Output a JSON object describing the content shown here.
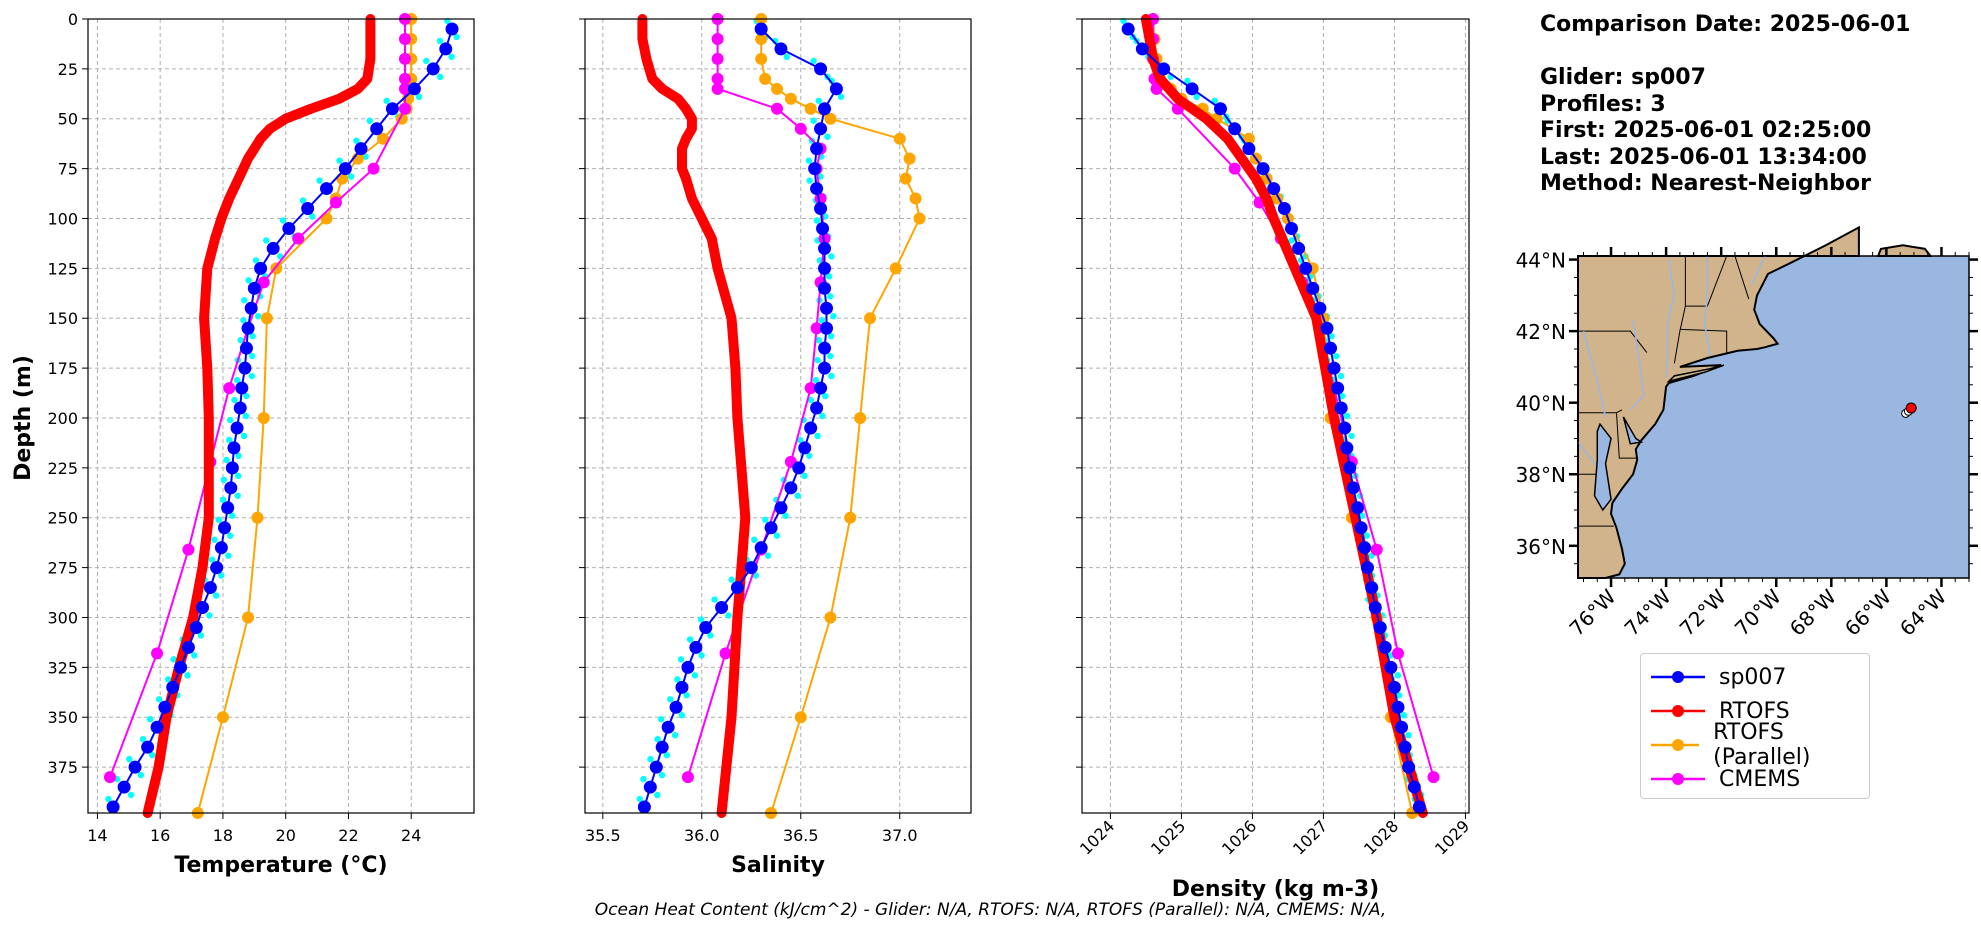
{
  "info": {
    "comparison_date": "Comparison Date: 2025-06-01",
    "glider": "Glider: sp007",
    "profiles": "Profiles: 3",
    "first": "First: 2025-06-01 02:25:00",
    "last": "Last: 2025-06-01 13:34:00",
    "method": "Method: Nearest-Neighbor"
  },
  "footer": "Ocean Heat Content (kJ/cm^2) - Glider: N/A,  RTOFS: N/A,  RTOFS (Parallel): N/A,  CMEMS: N/A,",
  "colors": {
    "sp007": "#0000ff",
    "rtofs": "#ff0000",
    "parallel": "#ffa500",
    "cmems": "#ff00ff",
    "raw": "#00ffff",
    "land": "#d2b48c",
    "ocean": "#9ab7e2",
    "grid": "#b0b0b0"
  },
  "legend": [
    {
      "key": "sp007",
      "label": "sp007",
      "color": "#0000ff"
    },
    {
      "key": "rtofs",
      "label": "RTOFS",
      "color": "#ff0000"
    },
    {
      "key": "parallel",
      "label": "RTOFS (Parallel)",
      "color": "#ffa500"
    },
    {
      "key": "cmems",
      "label": "CMEMS",
      "color": "#ff00ff"
    }
  ],
  "chart_data": [
    {
      "type": "line",
      "xlabel": "Temperature (°C)",
      "ylabel": "Depth (m)",
      "xlim": [
        13.7,
        26.0
      ],
      "ylim": [
        398,
        0
      ],
      "xticks": [
        14,
        16,
        18,
        20,
        22,
        24
      ],
      "yticks": [
        0,
        25,
        50,
        75,
        100,
        125,
        150,
        175,
        200,
        225,
        250,
        275,
        300,
        325,
        350,
        375
      ],
      "grid": true,
      "series": [
        {
          "name": "sp007",
          "depth": [
            5,
            15,
            25,
            35,
            45,
            55,
            65,
            75,
            85,
            95,
            105,
            115,
            125,
            135,
            145,
            155,
            165,
            175,
            185,
            195,
            205,
            215,
            225,
            235,
            245,
            255,
            265,
            275,
            285,
            295,
            305,
            315,
            325,
            335,
            345,
            355,
            365,
            375,
            385,
            395
          ],
          "values": [
            25.3,
            25.1,
            24.7,
            24.1,
            23.4,
            22.9,
            22.4,
            21.9,
            21.3,
            20.7,
            20.1,
            19.6,
            19.2,
            19.0,
            18.9,
            18.8,
            18.75,
            18.7,
            18.6,
            18.55,
            18.45,
            18.35,
            18.3,
            18.25,
            18.15,
            18.05,
            17.95,
            17.8,
            17.6,
            17.35,
            17.15,
            16.9,
            16.65,
            16.4,
            16.15,
            15.9,
            15.6,
            15.2,
            14.85,
            14.5
          ]
        },
        {
          "name": "RTOFS",
          "depth": [
            0,
            10,
            20,
            30,
            35,
            40,
            45,
            50,
            55,
            60,
            65,
            70,
            80,
            90,
            100,
            110,
            125,
            150,
            175,
            200,
            225,
            250,
            275,
            300,
            325,
            350,
            375,
            398
          ],
          "values": [
            22.7,
            22.7,
            22.7,
            22.6,
            22.3,
            21.7,
            20.8,
            20.0,
            19.5,
            19.2,
            19.0,
            18.8,
            18.5,
            18.2,
            17.95,
            17.75,
            17.5,
            17.4,
            17.5,
            17.55,
            17.55,
            17.55,
            17.35,
            17.05,
            16.6,
            16.2,
            15.95,
            15.6
          ]
        },
        {
          "name": "RTOFS (Parallel)",
          "depth": [
            0,
            10,
            20,
            30,
            35,
            40,
            45,
            50,
            60,
            70,
            80,
            90,
            100,
            125,
            150,
            200,
            250,
            300,
            350,
            398
          ],
          "values": [
            24.0,
            24.0,
            24.0,
            24.0,
            23.9,
            23.9,
            23.85,
            23.7,
            23.1,
            22.3,
            21.8,
            21.6,
            21.3,
            19.7,
            19.4,
            19.3,
            19.1,
            18.8,
            18.0,
            17.2
          ]
        },
        {
          "name": "CMEMS",
          "depth": [
            0,
            10,
            20,
            30,
            35,
            45,
            75,
            92,
            110,
            132,
            155,
            185,
            222,
            266,
            318,
            380
          ],
          "values": [
            23.8,
            23.8,
            23.8,
            23.8,
            23.8,
            23.8,
            22.8,
            21.6,
            20.4,
            19.3,
            18.8,
            18.2,
            17.6,
            16.9,
            15.9,
            14.4
          ]
        }
      ]
    },
    {
      "type": "line",
      "xlabel": "Salinity",
      "xlim": [
        35.41,
        37.36
      ],
      "ylim": [
        398,
        0
      ],
      "xticks": [
        35.5,
        36.0,
        36.5,
        37.0
      ],
      "xticklabels": [
        "35.5",
        "36.0",
        "36.5",
        "37.0"
      ],
      "grid": true,
      "series": [
        {
          "name": "sp007",
          "depth": [
            5,
            15,
            25,
            35,
            45,
            55,
            65,
            75,
            85,
            95,
            105,
            115,
            125,
            135,
            145,
            155,
            165,
            175,
            185,
            195,
            205,
            215,
            225,
            235,
            245,
            255,
            265,
            275,
            285,
            295,
            305,
            315,
            325,
            335,
            345,
            355,
            365,
            375,
            385,
            395
          ],
          "values": [
            36.3,
            36.4,
            36.6,
            36.68,
            36.62,
            36.6,
            36.58,
            36.57,
            36.58,
            36.6,
            36.61,
            36.62,
            36.62,
            36.62,
            36.63,
            36.63,
            36.62,
            36.62,
            36.6,
            36.58,
            36.55,
            36.52,
            36.49,
            36.45,
            36.4,
            36.35,
            36.3,
            36.25,
            36.18,
            36.1,
            36.02,
            35.97,
            35.93,
            35.9,
            35.87,
            35.83,
            35.8,
            35.77,
            35.74,
            35.71
          ]
        },
        {
          "name": "RTOFS",
          "depth": [
            0,
            10,
            20,
            30,
            35,
            40,
            45,
            50,
            55,
            60,
            65,
            70,
            75,
            80,
            90,
            100,
            110,
            125,
            150,
            175,
            200,
            225,
            250,
            275,
            300,
            350,
            398
          ],
          "values": [
            35.7,
            35.7,
            35.72,
            35.75,
            35.8,
            35.88,
            35.92,
            35.95,
            35.95,
            35.92,
            35.9,
            35.9,
            35.9,
            35.92,
            35.95,
            36.0,
            36.05,
            36.08,
            36.15,
            36.17,
            36.18,
            36.2,
            36.22,
            36.2,
            36.18,
            36.15,
            36.1
          ]
        },
        {
          "name": "RTOFS (Parallel)",
          "depth": [
            0,
            10,
            20,
            30,
            35,
            40,
            45,
            50,
            60,
            70,
            80,
            90,
            100,
            125,
            150,
            200,
            250,
            300,
            350,
            398
          ],
          "values": [
            36.3,
            36.3,
            36.3,
            36.32,
            36.38,
            36.45,
            36.55,
            36.65,
            37.0,
            37.05,
            37.03,
            37.08,
            37.1,
            36.98,
            36.85,
            36.8,
            36.75,
            36.65,
            36.5,
            36.35
          ]
        },
        {
          "name": "CMEMS",
          "depth": [
            0,
            10,
            20,
            30,
            35,
            45,
            55,
            65,
            75,
            90,
            110,
            132,
            155,
            185,
            222,
            266,
            318,
            380
          ],
          "values": [
            36.08,
            36.08,
            36.08,
            36.08,
            36.08,
            36.38,
            36.5,
            36.6,
            36.58,
            36.6,
            36.62,
            36.6,
            36.58,
            36.55,
            36.45,
            36.3,
            36.12,
            35.93
          ]
        }
      ]
    },
    {
      "type": "line",
      "xlabel": "Density (kg m-3)",
      "xlim": [
        1023.6,
        1029.05
      ],
      "ylim": [
        398,
        0
      ],
      "xticks": [
        1024,
        1025,
        1026,
        1027,
        1028,
        1029
      ],
      "grid": true,
      "series": [
        {
          "name": "sp007",
          "depth": [
            5,
            15,
            25,
            35,
            45,
            55,
            65,
            75,
            85,
            95,
            105,
            115,
            125,
            135,
            145,
            155,
            165,
            175,
            185,
            195,
            205,
            215,
            225,
            235,
            245,
            255,
            265,
            275,
            285,
            295,
            305,
            315,
            325,
            335,
            345,
            355,
            365,
            375,
            385,
            395
          ],
          "values": [
            1024.25,
            1024.45,
            1024.75,
            1025.15,
            1025.55,
            1025.75,
            1025.95,
            1026.15,
            1026.3,
            1026.45,
            1026.55,
            1026.65,
            1026.75,
            1026.85,
            1026.95,
            1027.05,
            1027.1,
            1027.15,
            1027.2,
            1027.25,
            1027.3,
            1027.33,
            1027.37,
            1027.42,
            1027.48,
            1027.53,
            1027.58,
            1027.62,
            1027.68,
            1027.73,
            1027.8,
            1027.87,
            1027.95,
            1028.0,
            1028.05,
            1028.1,
            1028.15,
            1028.2,
            1028.28,
            1028.35
          ]
        },
        {
          "name": "RTOFS",
          "depth": [
            0,
            10,
            20,
            30,
            40,
            50,
            60,
            70,
            80,
            90,
            100,
            125,
            150,
            200,
            250,
            300,
            350,
            398
          ],
          "values": [
            1024.5,
            1024.55,
            1024.6,
            1024.7,
            1024.95,
            1025.35,
            1025.65,
            1025.85,
            1026.05,
            1026.2,
            1026.3,
            1026.6,
            1026.9,
            1027.15,
            1027.45,
            1027.75,
            1028.0,
            1028.4
          ]
        },
        {
          "name": "RTOFS (Parallel)",
          "depth": [
            0,
            10,
            20,
            30,
            35,
            40,
            45,
            50,
            60,
            70,
            80,
            90,
            100,
            125,
            150,
            200,
            250,
            300,
            350,
            398
          ],
          "values": [
            1024.6,
            1024.62,
            1024.65,
            1024.7,
            1024.85,
            1025.0,
            1025.3,
            1025.5,
            1025.95,
            1026.05,
            1026.2,
            1026.35,
            1026.5,
            1026.85,
            1027.0,
            1027.1,
            1027.4,
            1027.75,
            1027.95,
            1028.25
          ]
        },
        {
          "name": "CMEMS",
          "depth": [
            0,
            10,
            20,
            30,
            35,
            45,
            75,
            92,
            110,
            132,
            155,
            185,
            222,
            266,
            318,
            380
          ],
          "values": [
            1024.6,
            1024.6,
            1024.6,
            1024.62,
            1024.65,
            1024.95,
            1025.75,
            1026.1,
            1026.4,
            1026.7,
            1026.95,
            1027.15,
            1027.4,
            1027.75,
            1028.05,
            1028.55
          ]
        }
      ]
    }
  ],
  "map": {
    "lon_ticks": [
      "76°W",
      "74°W",
      "72°W",
      "70°W",
      "68°W",
      "66°W",
      "64°W"
    ],
    "lat_ticks": [
      "44°N",
      "42°N",
      "40°N",
      "38°N",
      "36°N"
    ],
    "lon_values": [
      -76,
      -74,
      -72,
      -70,
      -68,
      -66,
      -64
    ],
    "lat_values": [
      44,
      42,
      40,
      38,
      36
    ],
    "extent": [
      -77.2,
      -63.0,
      35.1,
      44.1
    ],
    "glider_positions": [
      {
        "lon": -65.3,
        "lat": 39.7
      },
      {
        "lon": -65.2,
        "lat": 39.76
      }
    ],
    "model_position": {
      "lon": -65.1,
      "lat": 39.85
    }
  }
}
